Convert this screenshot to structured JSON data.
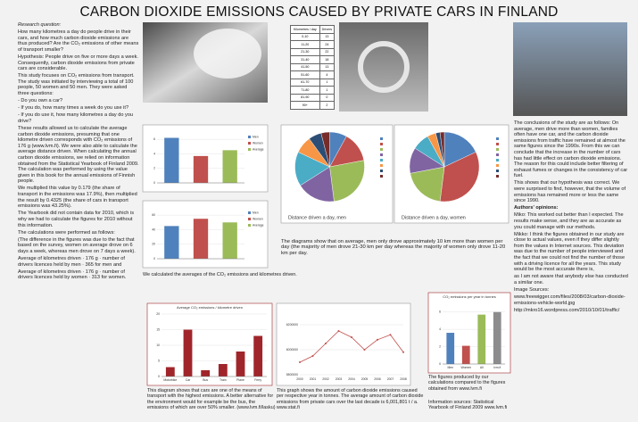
{
  "title": "CARBON DIOXIDE EMISSIONS CAUSED BY PRIVATE CARS IN FINLAND",
  "left_column": [
    "Research question:",
    "How many kilometres a day do people drive in their cars, and how much carbon dioxide emissions are thus produced? Are the CO₂ emissions of other means of transport smaller?",
    "Hypothesis: People drive on five or more days a week. Consequently, carbon dioxide emissions from private cars are considerable.",
    "This study focuses on CO₂ emissions from transport. The study was initiated by interviewing a total of 100 people, 50 women and 50 men. They were asked three questions:",
    "- Do you own a car?",
    "- If you do, how many times a week do you use it?",
    "- If you do use it, how many kilometres a day do you drive?",
    "These results allowed us to calculate the average carbon dioxide emissions, presuming that one kilometre driven corresponds with CO₂ emissions of 176 g (www.lvm.fi). We were also able to calculate the average distance driven. When calculating the annual carbon dioxide emissions, we relied on information obtained from the Statistical Yearbook of Finland 2009. The calculation was performed by using the value given in this book for the annual emissions of Finnish people.",
    "We multiplied this value by 0.179 (the share of transport in the emissions was 17.9%), then multiplied the result by 0.4325 (the share of cars in transport emissions was 43.25%).",
    "The Yearbook did not contain data for 2010, which is why we had to calculate the figures for 2010 without this information.",
    "The calculations were performed as follows:",
    "(The difference in the figures was due to the fact that based on the survey, women on average drove on 6 days a week, whereas men drove on 7 days a week).",
    "Average of kilometres driven · 176 g · number of drivers licences held by men · 365 for men and",
    "Average of kilometres driven · 176 g · number of drivers licences held by women · 313 for women."
  ],
  "table": {
    "header": [
      "Kilometres / day",
      "Drivers"
    ],
    "rows": [
      [
        "0-10",
        "13"
      ],
      [
        "11-20",
        "24"
      ],
      [
        "21-30",
        "22"
      ],
      [
        "31-40",
        "18"
      ],
      [
        "41-50",
        "13"
      ],
      [
        "51-60",
        "4"
      ],
      [
        "61-70",
        "1"
      ],
      [
        "71-80",
        "1"
      ],
      [
        "81-90",
        "0"
      ],
      [
        "90+",
        "2"
      ]
    ]
  },
  "figures": [
    {
      "type": "bar",
      "categories": [
        "Men",
        "Women",
        "Average"
      ],
      "values": [
        6.2,
        3.7,
        4.5
      ],
      "colors": [
        "#4f81bd",
        "#c0504d",
        "#9bbb59"
      ],
      "ylim": [
        0,
        7
      ],
      "yticks": [
        0,
        2,
        4,
        6
      ]
    },
    {
      "type": "bar",
      "categories": [
        "Men",
        "Women",
        "Average"
      ],
      "values": [
        45,
        55,
        50
      ],
      "colors": [
        "#4f81bd",
        "#c0504d",
        "#9bbb59"
      ],
      "ylim": [
        0,
        70
      ],
      "yticks": [
        0,
        20,
        40,
        60
      ]
    },
    {
      "type": "pie",
      "caption": "Distance driven a day, men",
      "values": [
        8,
        14,
        26,
        18,
        16,
        8,
        6,
        4
      ],
      "colors": [
        "#4f81bd",
        "#c0504d",
        "#9bbb59",
        "#8064a2",
        "#4bacc6",
        "#f79646",
        "#2c4d75",
        "#772c2a"
      ]
    },
    {
      "type": "pie",
      "caption": "Distance driven a day, women",
      "values": [
        18,
        34,
        20,
        12,
        8,
        4,
        2,
        2
      ],
      "colors": [
        "#4f81bd",
        "#c0504d",
        "#9bbb59",
        "#8064a2",
        "#4bacc6",
        "#f79646",
        "#2c4d75",
        "#772c2a"
      ]
    },
    {
      "type": "bar",
      "title": "Average CO₂ emissions / kilometre driven",
      "categories": [
        "Motorbike",
        "Car",
        "Bus",
        "Train",
        "Plane",
        "Ferry"
      ],
      "values": [
        3,
        15,
        2,
        4,
        8,
        13
      ],
      "colors": [
        "#a0252a",
        "#a0252a",
        "#a0252a",
        "#a0252a",
        "#a0252a",
        "#a0252a"
      ],
      "ylim": [
        0,
        20
      ],
      "yticks": [
        0,
        5,
        10,
        15,
        20
      ]
    },
    {
      "type": "line",
      "x": [
        2000,
        2001,
        2002,
        2003,
        2004,
        2005,
        2006,
        2007,
        2008
      ],
      "values": [
        5900000,
        5950000,
        6050000,
        6150000,
        6100000,
        6000000,
        6080000,
        6120000,
        5980000
      ],
      "color": "#c0504d",
      "xlim": [
        2000,
        2008
      ],
      "ylim": [
        5800000,
        6300000
      ],
      "yticks": [
        5800000,
        6000000,
        6200000
      ]
    },
    {
      "type": "bar",
      "title": "CO₂ emissions per year in tonnes",
      "categories": [
        "Men",
        "Women",
        "All",
        "lvm.fi"
      ],
      "values": [
        3.6,
        2.1,
        5.7,
        6.0
      ],
      "colors": [
        "#4f81bd",
        "#c0504d",
        "#9bbb59",
        "#8c8c8c"
      ],
      "ylim": [
        0,
        7
      ],
      "yticks": [
        0,
        2,
        4,
        6
      ]
    }
  ],
  "captions": [
    "We calculated the averages of the CO₂ emissions and kilometres driven.",
    "The diagrams show that on average, men only drove approximately 10 km more than women per day (the majority of men drove 21-30 km per day whereas the majority of women only drove 11-20 km per day.",
    "This diagram shows that cars are one of the means of transport with the highest emissions. A better alternative for the environment would for example be the bus, the emissions of which are over 50% smaller. (www.lvm.fi/lasku)",
    "This graph shows the amount of carbon dioxide emissions caused per respective year in tonnes. The average amount of carbon dioxide emissions from private cars over the last decade is 6,001,801 t / a. www.stat.fi",
    "The figures produced by our calculations compared to the figures obtained from www.lvm.fi",
    "Information sources: Statistical Yearbook of Finland 2009 www.lvm.fi"
  ],
  "right_column": [
    "The conclusions of the study are as follows: On average, men drive more than women, families often have one car, and the carbon dioxide emissions from traffic have remained at almost the same figures since the 1990s. From this we can conclude that the increase in the number of cars has had little effect on carbon dioxide emissions. The reason for this could include better filtering of exhaust fumes or changes in the consistency of car fuel.",
    "This shows that our hypothesis was correct. We were surprised to find, however, that the volume of emissions has remained more or less the same since 1990.",
    "Authors' opinions:",
    "Miko: This worked out better than I expected. The results make sense, and they are as accurate as you could manage with our methods.",
    "Mikko: I think the figures obtained in our study are close to actual values, even if they differ slightly from the values in Internet sources. This deviation was due to the number of people interviewed and the fact that we could not find the number of those with a driving licence for all the years. This study would be the most accurate there is,",
    "as I am not aware that anybody else has conducted a similar one.",
    "Image Sources:",
    "www.freewigger.com/files/2008/03/carbon-dioxide-emissions-vehicle-world.jpg",
    "http://mkro16.wordpress.com/2010/10/01/traffic/"
  ]
}
